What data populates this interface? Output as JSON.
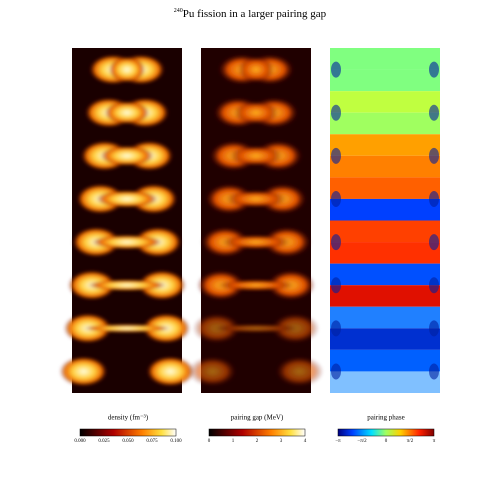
{
  "title_sup": "240",
  "title": "Pu fission in a larger pairing gap",
  "panels": [
    {
      "label": "density (fm⁻³)",
      "ticks": [
        "0.000",
        "0.025",
        "0.050",
        "0.075",
        "0.100"
      ]
    },
    {
      "label": "pairing gap (MeV)",
      "ticks": [
        "0",
        "1",
        "2",
        "3",
        "4"
      ]
    },
    {
      "label": "pairing phase",
      "ticks": [
        "−π",
        "−π/2",
        "0",
        "π/2",
        "π"
      ]
    }
  ]
}
